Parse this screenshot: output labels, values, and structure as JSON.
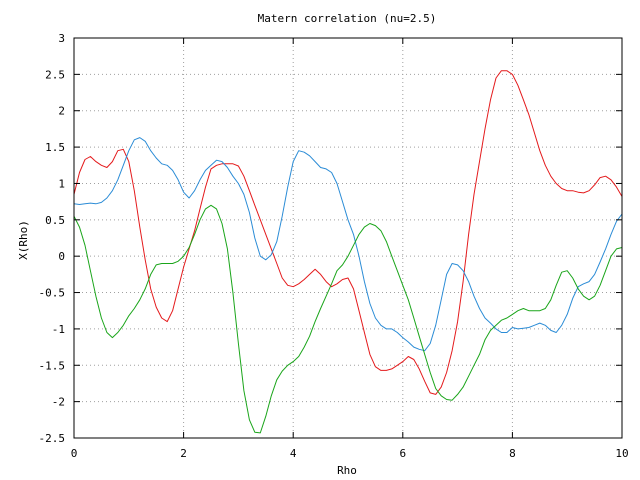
{
  "chart_data": {
    "type": "line",
    "title": "Matern correlation (nu=2.5)",
    "xlabel": "Rho",
    "ylabel": "X(Rho)",
    "xlim": [
      0,
      10
    ],
    "ylim": [
      -2.5,
      3
    ],
    "xticks": [
      "0",
      "2",
      "4",
      "6",
      "8",
      "10"
    ],
    "yticks": [
      "-2.5",
      "-2",
      "-1.5",
      "-1",
      "-0.5",
      "0",
      "0.5",
      "1",
      "1.5",
      "2",
      "2.5",
      "3"
    ],
    "grid": true,
    "series": [
      {
        "color": "#e41a1c",
        "x": [
          0,
          0.1,
          0.2,
          0.3,
          0.4,
          0.5,
          0.6,
          0.7,
          0.8,
          0.9,
          1.0,
          1.1,
          1.2,
          1.3,
          1.4,
          1.5,
          1.6,
          1.7,
          1.8,
          1.9,
          2.0,
          2.1,
          2.2,
          2.3,
          2.4,
          2.5,
          2.6,
          2.7,
          2.8,
          2.9,
          3.0,
          3.1,
          3.2,
          3.3,
          3.4,
          3.5,
          3.6,
          3.7,
          3.8,
          3.9,
          4.0,
          4.1,
          4.2,
          4.3,
          4.4,
          4.5,
          4.6,
          4.7,
          4.8,
          4.9,
          5.0,
          5.1,
          5.2,
          5.3,
          5.4,
          5.5,
          5.6,
          5.7,
          5.8,
          5.9,
          6.0,
          6.1,
          6.2,
          6.3,
          6.4,
          6.5,
          6.6,
          6.7,
          6.8,
          6.9,
          7.0,
          7.1,
          7.2,
          7.3,
          7.4,
          7.5,
          7.6,
          7.7,
          7.8,
          7.9,
          8.0,
          8.1,
          8.2,
          8.3,
          8.4,
          8.5,
          8.6,
          8.7,
          8.8,
          8.9,
          9.0,
          9.1,
          9.2,
          9.3,
          9.4,
          9.5,
          9.6,
          9.7,
          9.8,
          9.9,
          10.0
        ],
        "y": [
          0.85,
          1.15,
          1.33,
          1.37,
          1.3,
          1.25,
          1.22,
          1.3,
          1.45,
          1.47,
          1.3,
          0.9,
          0.4,
          -0.05,
          -0.45,
          -0.7,
          -0.85,
          -0.9,
          -0.75,
          -0.45,
          -0.15,
          0.1,
          0.35,
          0.65,
          0.95,
          1.2,
          1.25,
          1.27,
          1.27,
          1.27,
          1.24,
          1.1,
          0.9,
          0.7,
          0.5,
          0.3,
          0.1,
          -0.1,
          -0.3,
          -0.4,
          -0.42,
          -0.38,
          -0.32,
          -0.25,
          -0.18,
          -0.25,
          -0.35,
          -0.42,
          -0.38,
          -0.32,
          -0.3,
          -0.45,
          -0.75,
          -1.05,
          -1.35,
          -1.52,
          -1.57,
          -1.57,
          -1.55,
          -1.5,
          -1.45,
          -1.38,
          -1.42,
          -1.55,
          -1.72,
          -1.88,
          -1.9,
          -1.8,
          -1.6,
          -1.3,
          -0.9,
          -0.35,
          0.3,
          0.85,
          1.3,
          1.75,
          2.15,
          2.45,
          2.55,
          2.55,
          2.5,
          2.35,
          2.15,
          1.95,
          1.7,
          1.45,
          1.25,
          1.1,
          1.0,
          0.93,
          0.9,
          0.9,
          0.88,
          0.87,
          0.9,
          0.98,
          1.08,
          1.1,
          1.05,
          0.95,
          0.82
        ]
      },
      {
        "color": "#2b8cd6",
        "x": [
          0,
          0.1,
          0.2,
          0.3,
          0.4,
          0.5,
          0.6,
          0.7,
          0.8,
          0.9,
          1.0,
          1.1,
          1.2,
          1.3,
          1.4,
          1.5,
          1.6,
          1.7,
          1.8,
          1.9,
          2.0,
          2.1,
          2.2,
          2.3,
          2.4,
          2.5,
          2.6,
          2.7,
          2.8,
          2.9,
          3.0,
          3.1,
          3.2,
          3.3,
          3.4,
          3.5,
          3.6,
          3.7,
          3.8,
          3.9,
          4.0,
          4.1,
          4.2,
          4.3,
          4.4,
          4.5,
          4.6,
          4.7,
          4.8,
          4.9,
          5.0,
          5.1,
          5.2,
          5.3,
          5.4,
          5.5,
          5.6,
          5.7,
          5.8,
          5.9,
          6.0,
          6.1,
          6.2,
          6.3,
          6.4,
          6.5,
          6.6,
          6.7,
          6.8,
          6.9,
          7.0,
          7.1,
          7.2,
          7.3,
          7.4,
          7.5,
          7.6,
          7.7,
          7.8,
          7.9,
          8.0,
          8.1,
          8.2,
          8.3,
          8.4,
          8.5,
          8.6,
          8.7,
          8.8,
          8.9,
          9.0,
          9.1,
          9.2,
          9.3,
          9.4,
          9.5,
          9.6,
          9.7,
          9.8,
          9.9,
          10.0
        ],
        "y": [
          0.72,
          0.71,
          0.72,
          0.73,
          0.72,
          0.74,
          0.8,
          0.9,
          1.05,
          1.25,
          1.45,
          1.6,
          1.63,
          1.58,
          1.45,
          1.35,
          1.27,
          1.25,
          1.18,
          1.05,
          0.88,
          0.8,
          0.9,
          1.05,
          1.18,
          1.25,
          1.32,
          1.3,
          1.22,
          1.1,
          1.0,
          0.85,
          0.6,
          0.25,
          0.0,
          -0.05,
          0.02,
          0.2,
          0.55,
          0.95,
          1.3,
          1.45,
          1.43,
          1.38,
          1.3,
          1.22,
          1.2,
          1.15,
          1.0,
          0.75,
          0.5,
          0.3,
          0.0,
          -0.35,
          -0.65,
          -0.85,
          -0.95,
          -1.0,
          -1.0,
          -1.05,
          -1.12,
          -1.18,
          -1.25,
          -1.28,
          -1.3,
          -1.2,
          -0.95,
          -0.6,
          -0.25,
          -0.1,
          -0.12,
          -0.2,
          -0.35,
          -0.55,
          -0.72,
          -0.85,
          -0.92,
          -1.0,
          -1.05,
          -1.05,
          -0.98,
          -1.0,
          -0.99,
          -0.98,
          -0.95,
          -0.92,
          -0.95,
          -1.02,
          -1.05,
          -0.95,
          -0.8,
          -0.58,
          -0.42,
          -0.38,
          -0.35,
          -0.25,
          -0.08,
          0.1,
          0.3,
          0.48,
          0.58
        ]
      },
      {
        "color": "#1aa51a",
        "x": [
          0,
          0.1,
          0.2,
          0.3,
          0.4,
          0.5,
          0.6,
          0.7,
          0.8,
          0.9,
          1.0,
          1.1,
          1.2,
          1.3,
          1.4,
          1.5,
          1.6,
          1.7,
          1.8,
          1.9,
          2.0,
          2.1,
          2.2,
          2.3,
          2.4,
          2.5,
          2.6,
          2.7,
          2.8,
          2.9,
          3.0,
          3.1,
          3.2,
          3.3,
          3.4,
          3.5,
          3.6,
          3.7,
          3.8,
          3.9,
          4.0,
          4.1,
          4.2,
          4.3,
          4.4,
          4.5,
          4.6,
          4.7,
          4.8,
          4.9,
          5.0,
          5.1,
          5.2,
          5.3,
          5.4,
          5.5,
          5.6,
          5.7,
          5.8,
          5.9,
          6.0,
          6.1,
          6.2,
          6.3,
          6.4,
          6.5,
          6.6,
          6.7,
          6.8,
          6.9,
          7.0,
          7.1,
          7.2,
          7.3,
          7.4,
          7.5,
          7.6,
          7.7,
          7.8,
          7.9,
          8.0,
          8.1,
          8.2,
          8.3,
          8.4,
          8.5,
          8.6,
          8.7,
          8.8,
          8.9,
          9.0,
          9.1,
          9.2,
          9.3,
          9.4,
          9.5,
          9.6,
          9.7,
          9.8,
          9.9,
          10.0
        ],
        "y": [
          0.55,
          0.4,
          0.15,
          -0.2,
          -0.55,
          -0.85,
          -1.05,
          -1.12,
          -1.05,
          -0.95,
          -0.82,
          -0.72,
          -0.6,
          -0.45,
          -0.25,
          -0.12,
          -0.1,
          -0.1,
          -0.1,
          -0.07,
          0.0,
          0.12,
          0.3,
          0.5,
          0.65,
          0.7,
          0.65,
          0.45,
          0.1,
          -0.5,
          -1.2,
          -1.85,
          -2.25,
          -2.42,
          -2.43,
          -2.2,
          -1.92,
          -1.7,
          -1.58,
          -1.5,
          -1.45,
          -1.38,
          -1.25,
          -1.1,
          -0.9,
          -0.72,
          -0.55,
          -0.38,
          -0.2,
          -0.12,
          0.0,
          0.15,
          0.3,
          0.4,
          0.45,
          0.42,
          0.35,
          0.2,
          0.0,
          -0.2,
          -0.4,
          -0.6,
          -0.85,
          -1.1,
          -1.35,
          -1.6,
          -1.82,
          -1.92,
          -1.97,
          -1.98,
          -1.9,
          -1.8,
          -1.65,
          -1.5,
          -1.35,
          -1.15,
          -1.02,
          -0.95,
          -0.88,
          -0.85,
          -0.8,
          -0.75,
          -0.72,
          -0.75,
          -0.75,
          -0.75,
          -0.72,
          -0.6,
          -0.4,
          -0.22,
          -0.2,
          -0.3,
          -0.45,
          -0.55,
          -0.6,
          -0.55,
          -0.4,
          -0.2,
          0.0,
          0.1,
          0.12
        ]
      }
    ]
  }
}
